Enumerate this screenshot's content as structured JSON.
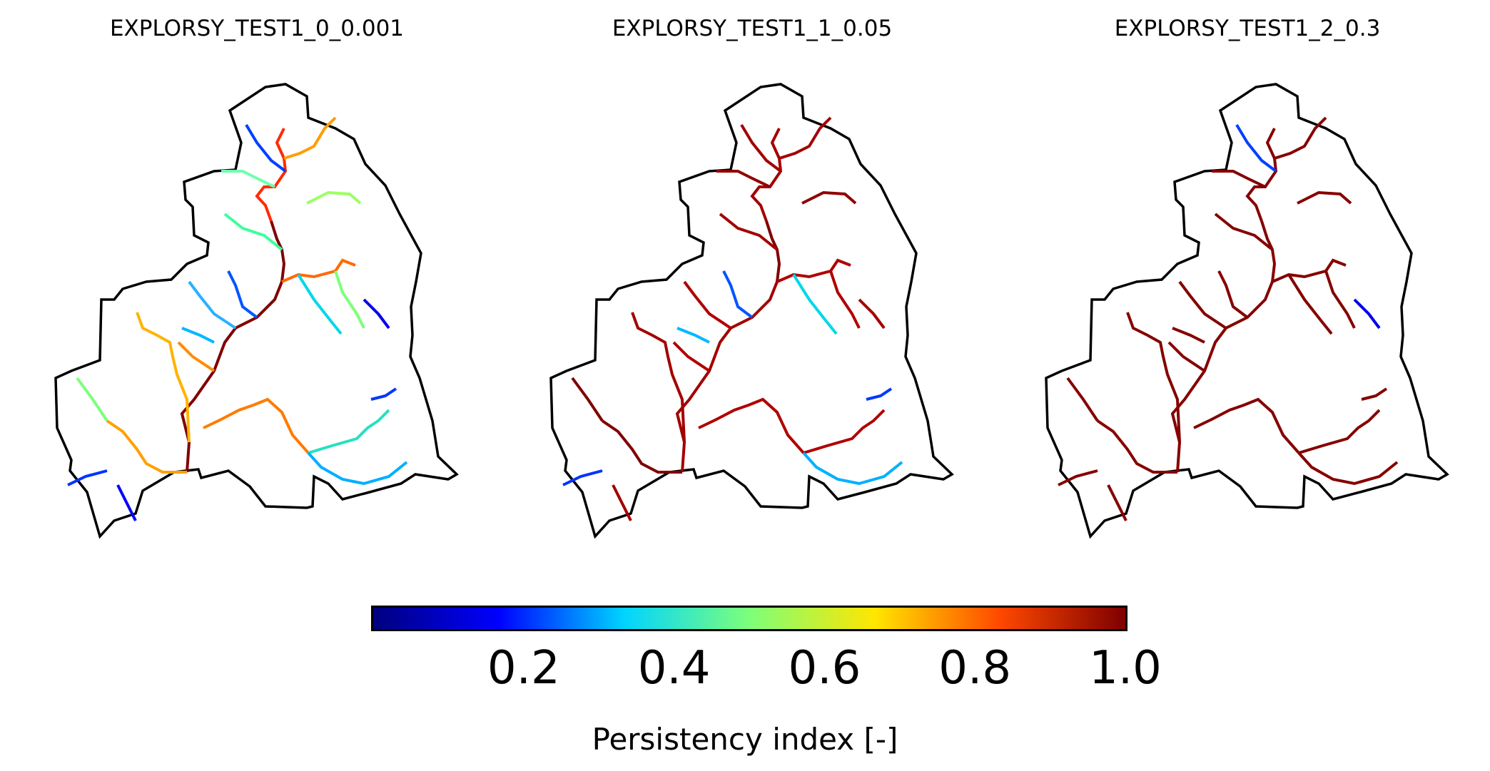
{
  "panels": [
    {
      "title": "EXPLORSY_TEST1_0_0.001"
    },
    {
      "title": "EXPLORSY_TEST1_1_0.05"
    },
    {
      "title": "EXPLORSY_TEST1_2_0.3"
    }
  ],
  "colorbar": {
    "colormap": "jet",
    "range": [
      0.0,
      1.0
    ],
    "ticks": [
      "0.2",
      "0.4",
      "0.6",
      "0.8",
      "1.0"
    ],
    "label": "Persistency index [-]",
    "stops": [
      "#00007f",
      "#0000ff",
      "#00d4ff",
      "#7dff7a",
      "#ffe600",
      "#ff4800",
      "#7f0000"
    ]
  }
}
